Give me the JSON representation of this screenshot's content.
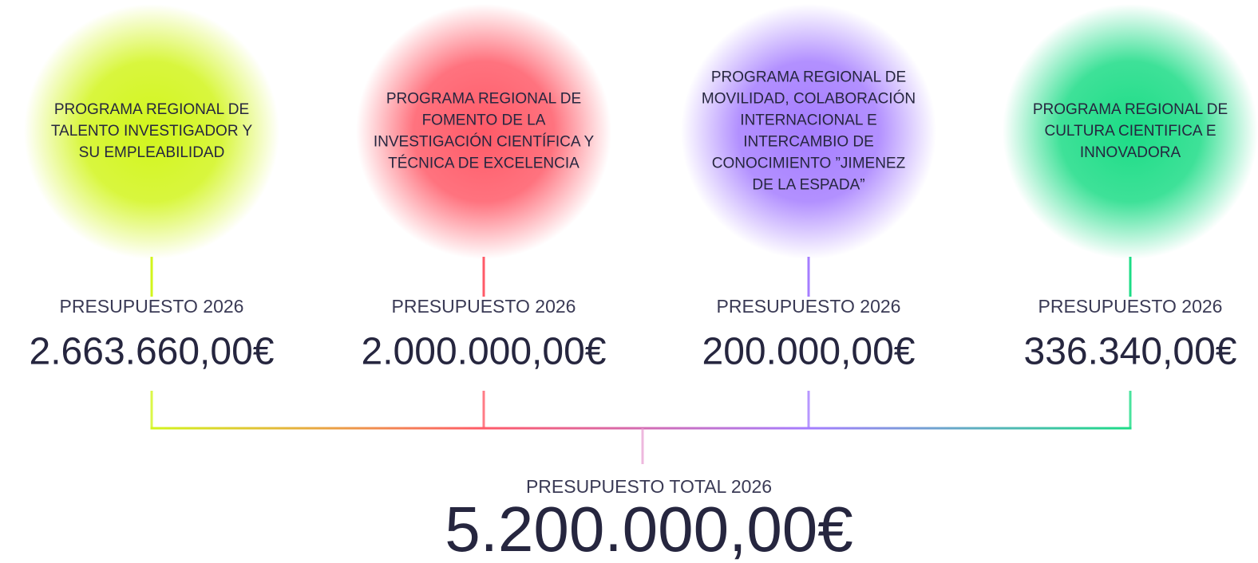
{
  "programs": [
    {
      "label_lines": [
        "PROGRAMA REGIONAL DE",
        "TALENTO INVESTIGADOR Y",
        "SU EMPLEABILIDAD"
      ],
      "budget_label": "PRESUPUESTO 2026",
      "amount": "2.663.660,00€",
      "color": "#d2f51c"
    },
    {
      "label_lines": [
        "PROGRAMA REGIONAL DE",
        "FOMENTO DE LA",
        "INVESTIGACIÓN CIENTÍFICA Y",
        "TÉCNICA DE EXCELENCIA"
      ],
      "budget_label": "PRESUPUESTO 2026",
      "amount": "2.000.000,00€",
      "color": "#ff5a68"
    },
    {
      "label_lines": [
        "PROGRAMA REGIONAL DE",
        "MOVILIDAD, COLABORACIÓN",
        "INTERNACIONAL E",
        "INTERCAMBIO DE",
        "CONOCIMIENTO ”JIMENEZ",
        "DE LA ESPADA”"
      ],
      "budget_label": "PRESUPUESTO 2026",
      "amount": "200.000,00€",
      "color": "#a57dff"
    },
    {
      "label_lines": [
        "PROGRAMA REGIONAL DE",
        "CULTURA CIENTIFICA E",
        "INNOVADORA"
      ],
      "budget_label": "PRESUPUESTO 2026",
      "amount": "336.340,00€",
      "color": "#1cdc86"
    }
  ],
  "total": {
    "label": "PRESUPUESTO TOTAL 2026",
    "amount": "5.200.000,00€"
  }
}
